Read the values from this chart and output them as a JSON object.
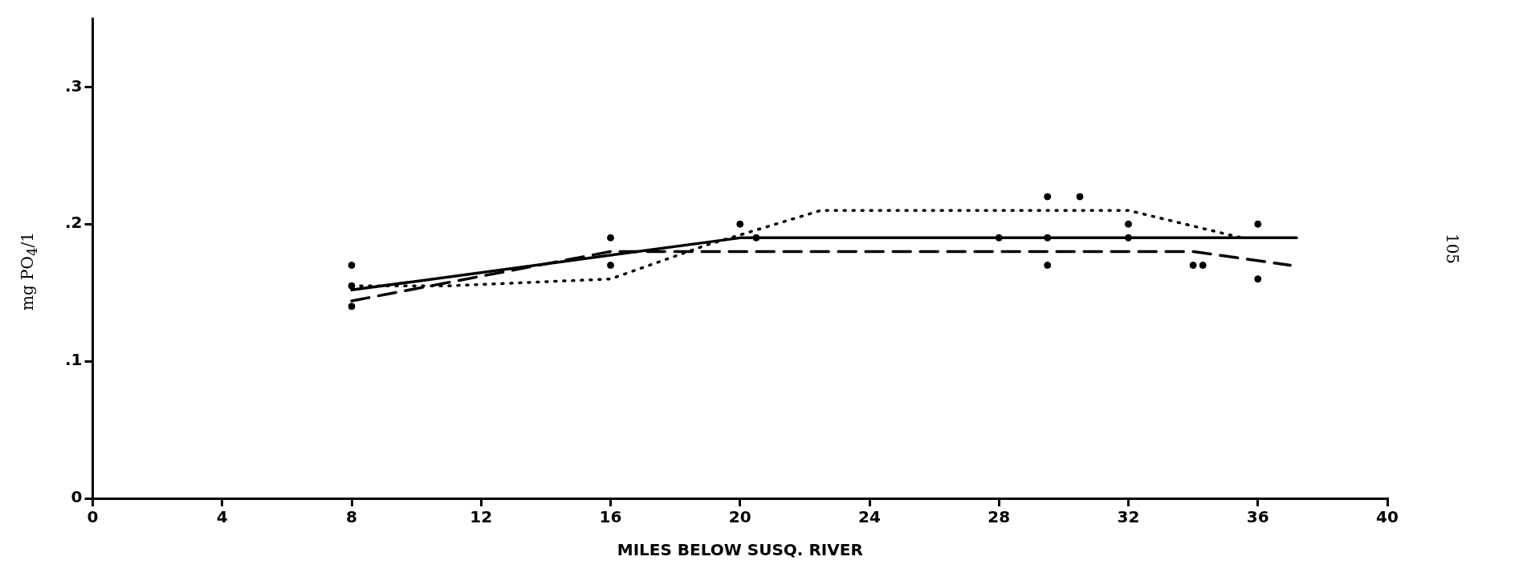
{
  "chart_data": {
    "type": "line",
    "xlabel": "MILES BELOW SUSQ. RIVER",
    "ylabel": "mg PO$_{4}$/1",
    "xlim": [
      0,
      40
    ],
    "xticks": [
      0,
      4,
      8,
      12,
      16,
      20,
      24,
      28,
      32,
      36,
      40
    ],
    "ylim": [
      0,
      0.35
    ],
    "yticks": [
      {
        "value": 0,
        "label": "0"
      },
      {
        "value": 0.1,
        "label": ".1"
      },
      {
        "value": 0.2,
        "label": ".2"
      },
      {
        "value": 0.3,
        "label": ".3"
      }
    ],
    "grid": false,
    "legend": false,
    "annotations": [
      "105"
    ],
    "series": [
      {
        "type": "line",
        "line_style": "solid",
        "marker": "none",
        "color": "#000000",
        "x": [
          8,
          20,
          37.2
        ],
        "values": [
          0.152,
          0.19,
          0.19
        ]
      },
      {
        "type": "line",
        "line_style": "dashed",
        "marker": "none",
        "color": "#000000",
        "x": [
          8,
          16,
          19,
          34,
          37
        ],
        "values": [
          0.144,
          0.18,
          0.18,
          0.18,
          0.17
        ]
      },
      {
        "type": "line",
        "line_style": "dotted",
        "marker": "none",
        "color": "#000000",
        "x": [
          8,
          11,
          16,
          19,
          22.5,
          32,
          35.5
        ],
        "values": [
          0.155,
          0.155,
          0.16,
          0.185,
          0.21,
          0.21,
          0.19
        ]
      },
      {
        "type": "scatter",
        "marker": "circle",
        "color": "#000000",
        "x": [
          8,
          8,
          8,
          16,
          16,
          20,
          20.5,
          28,
          29.5,
          29.5,
          29.5,
          30.5,
          32,
          32,
          34,
          34.3,
          36,
          36
        ],
        "values": [
          0.17,
          0.155,
          0.14,
          0.19,
          0.17,
          0.2,
          0.19,
          0.19,
          0.22,
          0.19,
          0.17,
          0.22,
          0.2,
          0.19,
          0.17,
          0.17,
          0.2,
          0.16
        ]
      }
    ]
  }
}
